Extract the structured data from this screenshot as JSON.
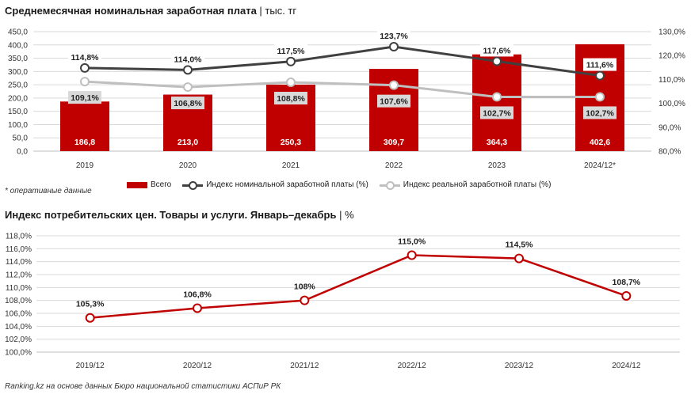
{
  "titles": {
    "chart1_bold": "Среднемесячная номинальная заработная плата",
    "chart1_unit": " | тыс. тг",
    "chart2_bold": "Индекс потребительских цен. Товары и услуги. Январь–декабрь",
    "chart2_unit": " | %"
  },
  "note": "* оперативные данные",
  "source": "Ranking.kz на основе данных Бюро национальной статистики АСПиР РК",
  "colors": {
    "bar": "#c00000",
    "nominal_line": "#404040",
    "real_line": "#bfbfbf",
    "cpi_line": "#c00000",
    "grid": "#d9d9d9"
  },
  "chart_data": [
    {
      "type": "bar",
      "categories": [
        "2019",
        "2020",
        "2021",
        "2022",
        "2023",
        "2024/12*"
      ],
      "bar_labels": [
        "186,8",
        "213,0",
        "250,3",
        "309,7",
        "364,3",
        "402,6"
      ],
      "ylim": [
        0,
        450
      ],
      "y_ticks": [
        "0,0",
        "50,0",
        "100,0",
        "150,0",
        "200,0",
        "250,0",
        "300,0",
        "350,0",
        "400,0",
        "450,0"
      ],
      "y2lim": [
        80,
        130
      ],
      "y2_ticks": [
        "80,0%",
        "90,0%",
        "100,0%",
        "110,0%",
        "120,0%",
        "130,0%"
      ],
      "legend_position": "bottom",
      "series": [
        {
          "name": "Всего",
          "type": "bar",
          "axis": "left",
          "values": [
            186.8,
            213.0,
            250.3,
            309.7,
            364.3,
            402.6
          ]
        },
        {
          "name": "Индекс номинальной заработной платы (%)",
          "type": "line",
          "axis": "right",
          "values": [
            114.8,
            114.0,
            117.5,
            123.7,
            117.6,
            111.6
          ],
          "labels": [
            "114,8%",
            "114,0%",
            "117,5%",
            "123,7%",
            "117,6%",
            "111,6%"
          ]
        },
        {
          "name": "Индекс реальной заработной платы (%)",
          "type": "line",
          "axis": "right",
          "values": [
            109.1,
            106.8,
            108.8,
            107.6,
            102.7,
            102.7
          ],
          "labels": [
            "109,1%",
            "106,8%",
            "108,8%",
            "107,6%",
            "102,7%",
            "102,7%"
          ]
        }
      ]
    },
    {
      "type": "line",
      "categories": [
        "2019/12",
        "2020/12",
        "2021/12",
        "2022/12",
        "2023/12",
        "2024/12"
      ],
      "ylim": [
        100,
        118
      ],
      "y_ticks": [
        "100,0%",
        "102,0%",
        "104,0%",
        "106,0%",
        "108,0%",
        "110,0%",
        "112,0%",
        "114,0%",
        "116,0%",
        "118,0%"
      ],
      "series": [
        {
          "values": [
            105.3,
            106.8,
            108.0,
            115.0,
            114.5,
            108.7
          ],
          "labels": [
            "105,3%",
            "106,8%",
            "108%",
            "115,0%",
            "114,5%",
            "108,7%"
          ]
        }
      ]
    }
  ]
}
